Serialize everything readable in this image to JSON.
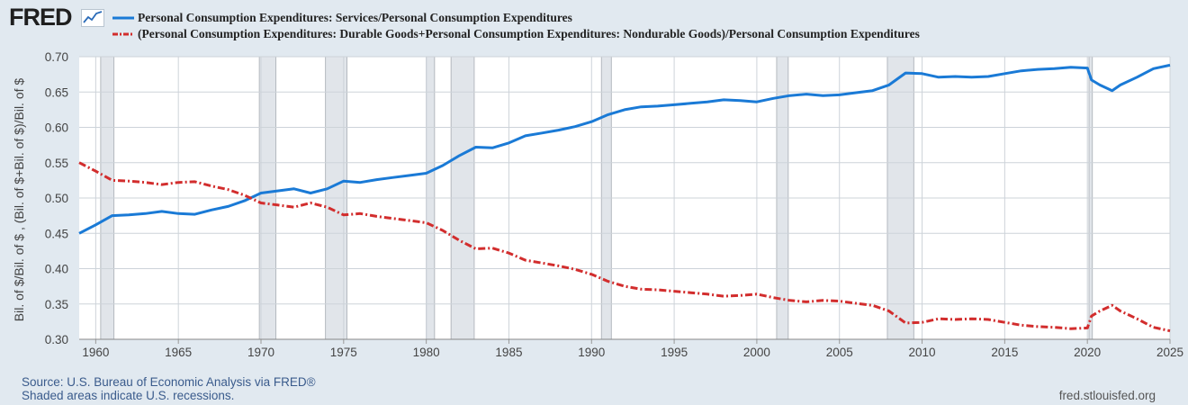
{
  "logo": {
    "text": "FRED"
  },
  "chart_data": {
    "type": "line",
    "title": "",
    "xlabel": "",
    "ylabel": "Bil. of $/Bil. of $ , (Bil. of $+Bil. of $)/Bil. of $",
    "xlim": [
      1959,
      2025
    ],
    "ylim": [
      0.3,
      0.7
    ],
    "x_ticks": [
      1960,
      1965,
      1970,
      1975,
      1980,
      1985,
      1990,
      1995,
      2000,
      2005,
      2010,
      2015,
      2020,
      2025
    ],
    "y_ticks": [
      0.3,
      0.35,
      0.4,
      0.45,
      0.5,
      0.55,
      0.6,
      0.65,
      0.7
    ],
    "y_tick_labels": [
      "0.30",
      "0.35",
      "0.40",
      "0.45",
      "0.50",
      "0.55",
      "0.60",
      "0.65",
      "0.70"
    ],
    "recessions": [
      [
        1960.3,
        1961.1
      ],
      [
        1969.9,
        1970.9
      ],
      [
        1973.9,
        1975.2
      ],
      [
        1980.0,
        1980.5
      ],
      [
        1981.5,
        1982.9
      ],
      [
        1990.6,
        1991.2
      ],
      [
        2001.2,
        2001.9
      ],
      [
        2007.9,
        2009.5
      ],
      [
        2020.1,
        2020.3
      ]
    ],
    "series": [
      {
        "name": "Personal Consumption Expenditures: Services/Personal Consumption Expenditures",
        "color": "#1a7ad6",
        "style": "solid",
        "points": [
          [
            1959,
            0.45
          ],
          [
            1960,
            0.462
          ],
          [
            1961,
            0.475
          ],
          [
            1962,
            0.476
          ],
          [
            1963,
            0.478
          ],
          [
            1964,
            0.481
          ],
          [
            1965,
            0.478
          ],
          [
            1966,
            0.477
          ],
          [
            1967,
            0.483
          ],
          [
            1968,
            0.488
          ],
          [
            1969,
            0.496
          ],
          [
            1970,
            0.507
          ],
          [
            1971,
            0.51
          ],
          [
            1972,
            0.513
          ],
          [
            1973,
            0.507
          ],
          [
            1974,
            0.513
          ],
          [
            1975,
            0.524
          ],
          [
            1976,
            0.522
          ],
          [
            1977,
            0.526
          ],
          [
            1978,
            0.529
          ],
          [
            1979,
            0.532
          ],
          [
            1980,
            0.535
          ],
          [
            1981,
            0.546
          ],
          [
            1982,
            0.56
          ],
          [
            1983,
            0.572
          ],
          [
            1984,
            0.571
          ],
          [
            1985,
            0.578
          ],
          [
            1986,
            0.588
          ],
          [
            1987,
            0.592
          ],
          [
            1988,
            0.596
          ],
          [
            1989,
            0.601
          ],
          [
            1990,
            0.608
          ],
          [
            1991,
            0.618
          ],
          [
            1992,
            0.625
          ],
          [
            1993,
            0.629
          ],
          [
            1994,
            0.63
          ],
          [
            1995,
            0.632
          ],
          [
            1996,
            0.634
          ],
          [
            1997,
            0.636
          ],
          [
            1998,
            0.639
          ],
          [
            1999,
            0.638
          ],
          [
            2000,
            0.636
          ],
          [
            2001,
            0.641
          ],
          [
            2002,
            0.645
          ],
          [
            2003,
            0.647
          ],
          [
            2004,
            0.645
          ],
          [
            2005,
            0.646
          ],
          [
            2006,
            0.649
          ],
          [
            2007,
            0.652
          ],
          [
            2008,
            0.66
          ],
          [
            2009,
            0.677
          ],
          [
            2010,
            0.676
          ],
          [
            2011,
            0.671
          ],
          [
            2012,
            0.672
          ],
          [
            2013,
            0.671
          ],
          [
            2014,
            0.672
          ],
          [
            2015,
            0.676
          ],
          [
            2016,
            0.68
          ],
          [
            2017,
            0.682
          ],
          [
            2018,
            0.683
          ],
          [
            2019,
            0.685
          ],
          [
            2020,
            0.684
          ],
          [
            2020.25,
            0.667
          ],
          [
            2020.75,
            0.66
          ],
          [
            2021.5,
            0.652
          ],
          [
            2022,
            0.66
          ],
          [
            2023,
            0.671
          ],
          [
            2024,
            0.683
          ],
          [
            2025,
            0.688
          ]
        ]
      },
      {
        "name": "(Personal Consumption Expenditures: Durable Goods+Personal Consumption Expenditures: Nondurable Goods)/Personal Consumption Expenditures",
        "color": "#d22d2d",
        "style": "dashed",
        "points": [
          [
            1959,
            0.55
          ],
          [
            1960,
            0.538
          ],
          [
            1961,
            0.525
          ],
          [
            1962,
            0.524
          ],
          [
            1963,
            0.522
          ],
          [
            1964,
            0.519
          ],
          [
            1965,
            0.522
          ],
          [
            1966,
            0.523
          ],
          [
            1967,
            0.517
          ],
          [
            1968,
            0.512
          ],
          [
            1969,
            0.504
          ],
          [
            1970,
            0.493
          ],
          [
            1971,
            0.49
          ],
          [
            1972,
            0.487
          ],
          [
            1973,
            0.493
          ],
          [
            1974,
            0.487
          ],
          [
            1975,
            0.476
          ],
          [
            1976,
            0.478
          ],
          [
            1977,
            0.474
          ],
          [
            1978,
            0.471
          ],
          [
            1979,
            0.468
          ],
          [
            1980,
            0.465
          ],
          [
            1981,
            0.454
          ],
          [
            1982,
            0.44
          ],
          [
            1983,
            0.428
          ],
          [
            1984,
            0.429
          ],
          [
            1985,
            0.422
          ],
          [
            1986,
            0.412
          ],
          [
            1987,
            0.408
          ],
          [
            1988,
            0.404
          ],
          [
            1989,
            0.399
          ],
          [
            1990,
            0.392
          ],
          [
            1991,
            0.382
          ],
          [
            1992,
            0.375
          ],
          [
            1993,
            0.371
          ],
          [
            1994,
            0.37
          ],
          [
            1995,
            0.368
          ],
          [
            1996,
            0.366
          ],
          [
            1997,
            0.364
          ],
          [
            1998,
            0.361
          ],
          [
            1999,
            0.362
          ],
          [
            2000,
            0.364
          ],
          [
            2001,
            0.359
          ],
          [
            2002,
            0.355
          ],
          [
            2003,
            0.353
          ],
          [
            2004,
            0.355
          ],
          [
            2005,
            0.354
          ],
          [
            2006,
            0.351
          ],
          [
            2007,
            0.348
          ],
          [
            2008,
            0.34
          ],
          [
            2009,
            0.323
          ],
          [
            2010,
            0.324
          ],
          [
            2011,
            0.329
          ],
          [
            2012,
            0.328
          ],
          [
            2013,
            0.329
          ],
          [
            2014,
            0.328
          ],
          [
            2015,
            0.324
          ],
          [
            2016,
            0.32
          ],
          [
            2017,
            0.318
          ],
          [
            2018,
            0.317
          ],
          [
            2019,
            0.315
          ],
          [
            2020,
            0.316
          ],
          [
            2020.25,
            0.333
          ],
          [
            2020.75,
            0.34
          ],
          [
            2021.5,
            0.348
          ],
          [
            2022,
            0.34
          ],
          [
            2023,
            0.329
          ],
          [
            2024,
            0.317
          ],
          [
            2025,
            0.312
          ]
        ]
      }
    ]
  },
  "footer": {
    "source": "Source: U.S. Bureau of Economic Analysis via FRED®",
    "shaded": "Shaded areas indicate U.S. recessions.",
    "site": "fred.stlouisfed.org"
  }
}
